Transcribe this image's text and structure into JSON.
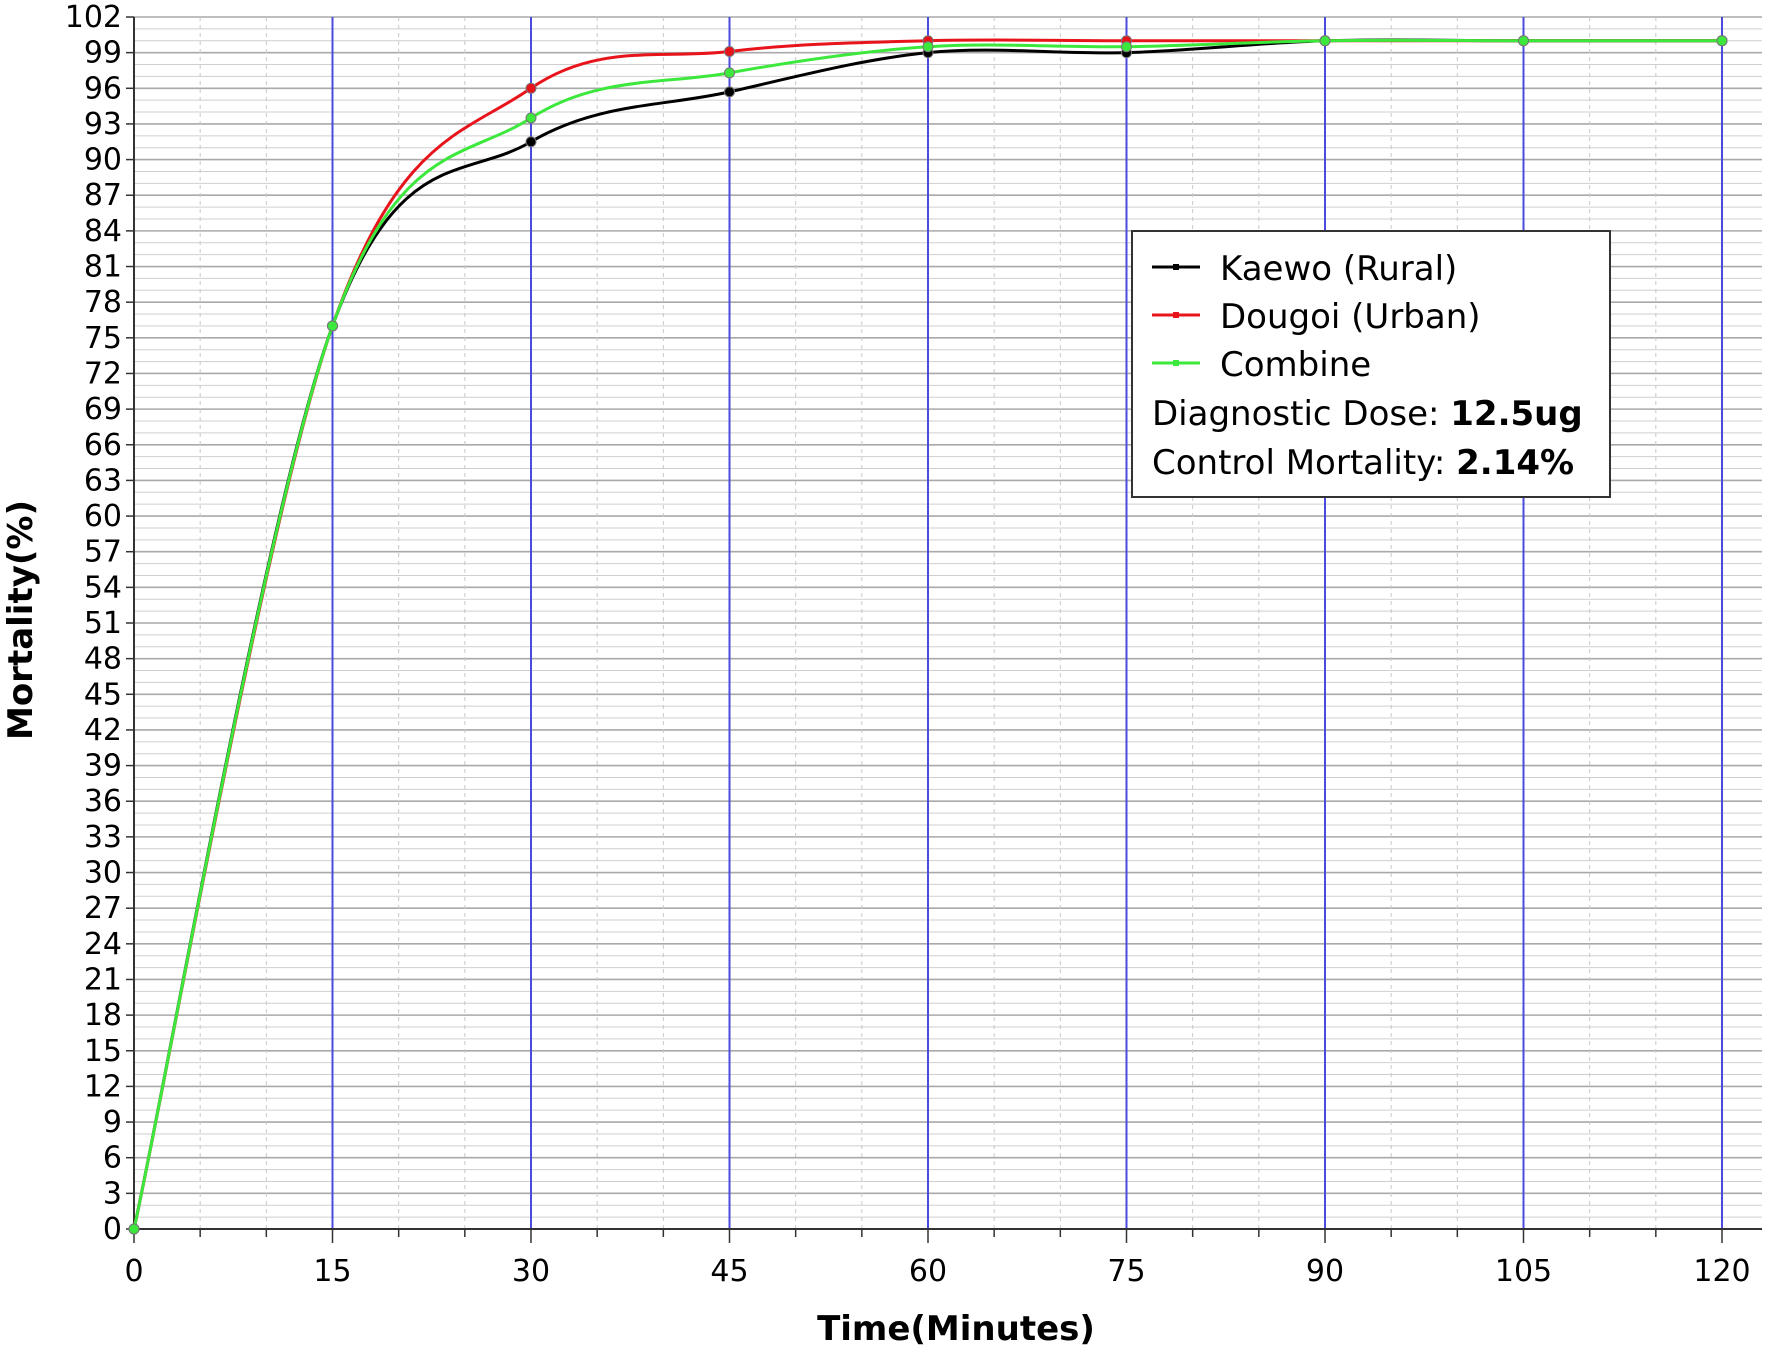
{
  "chart_data": {
    "type": "line",
    "xlabel": "Time(Minutes)",
    "ylabel": "Mortality(%)",
    "xlim": [
      0,
      120
    ],
    "ylim": [
      0,
      102
    ],
    "x_ticks": [
      0,
      15,
      30,
      45,
      60,
      75,
      90,
      105,
      120
    ],
    "y_ticks": [
      0,
      3,
      6,
      9,
      12,
      15,
      18,
      21,
      24,
      27,
      30,
      33,
      36,
      39,
      42,
      45,
      48,
      51,
      54,
      57,
      60,
      63,
      66,
      69,
      72,
      75,
      78,
      81,
      84,
      87,
      90,
      93,
      96,
      99,
      102
    ],
    "grid": true,
    "legend_position": "top-right",
    "x": [
      0,
      15,
      30,
      45,
      60,
      75,
      90,
      105,
      120
    ],
    "series": [
      {
        "name": "Kaewo (Rural)",
        "color": "#000000",
        "values": [
          0,
          76,
          91.5,
          95.7,
          99,
          99,
          100,
          100,
          100
        ]
      },
      {
        "name": "Dougoi (Urban)",
        "color": "#e8141b",
        "values": [
          0,
          76,
          96,
          99.1,
          100,
          100,
          100,
          100,
          100
        ]
      },
      {
        "name": "Combine",
        "color": "#3de83d",
        "values": [
          0,
          76,
          93.5,
          97.3,
          99.5,
          99.5,
          100,
          100,
          100
        ]
      }
    ],
    "annotations": [
      {
        "label": "Diagnostic Dose: ",
        "value": "12.5ug"
      },
      {
        "label": "Control Mortality: ",
        "value": "2.14%"
      }
    ]
  }
}
